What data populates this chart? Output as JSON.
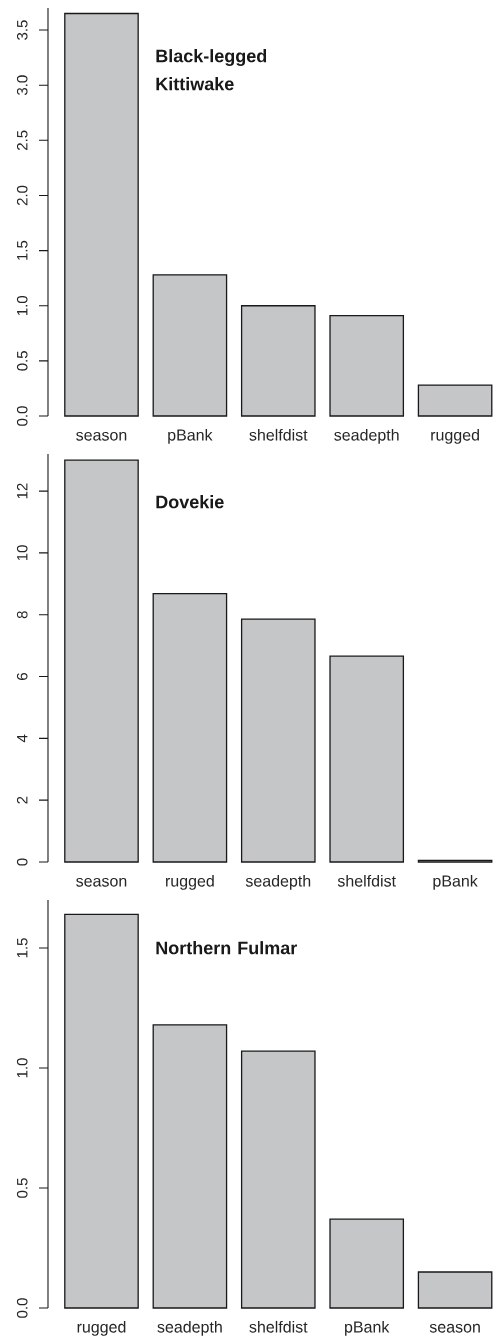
{
  "chart_data": [
    {
      "type": "bar",
      "title": "Black-legged Kittiwake",
      "categories": [
        "season",
        "pBank",
        "shelfdist",
        "seadepth",
        "rugged"
      ],
      "values": [
        3.65,
        1.28,
        1.0,
        0.91,
        0.28
      ],
      "color": "#c5c6c8",
      "ylim": [
        0,
        3.7
      ],
      "yticks": [
        {
          "value": 0,
          "label": "0.0"
        },
        0.5,
        {
          "value": 1,
          "label": "1.0"
        },
        1.5,
        {
          "value": 2,
          "label": "2.0"
        },
        2.5,
        {
          "value": 3,
          "label": "3.0"
        },
        3.5
      ]
    },
    {
      "type": "bar",
      "title": "Dovekie",
      "categories": [
        "season",
        "rugged",
        "seadepth",
        "shelfdist",
        "pBank"
      ],
      "values": [
        13.0,
        8.68,
        7.86,
        6.66,
        0.05
      ],
      "color": "#c5c6c8",
      "ylim": [
        0,
        13.2
      ],
      "yticks": [
        0,
        2,
        4,
        6,
        8,
        10,
        12
      ]
    },
    {
      "type": "bar",
      "title": "Northern Fulmar",
      "categories": [
        "rugged",
        "seadepth",
        "shelfdist",
        "pBank",
        "season"
      ],
      "values": [
        1.64,
        1.18,
        1.07,
        0.37,
        0.15
      ],
      "color": "#c5c6c8",
      "ylim": [
        0,
        1.7
      ],
      "yticks": [
        {
          "value": 0,
          "label": "0.0"
        },
        0.5,
        {
          "value": 1,
          "label": "1.0"
        },
        1.5
      ]
    }
  ]
}
